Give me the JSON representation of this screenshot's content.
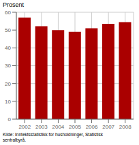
{
  "chart_data": {
    "type": "bar",
    "ylabel": "Prosent",
    "categories": [
      "2002",
      "2003",
      "2004",
      "2005",
      "2006",
      "2007",
      "2008"
    ],
    "values": [
      57.0,
      52.2,
      50.0,
      49.0,
      51.0,
      53.5,
      54.5
    ],
    "color": "#AA0000",
    "ylim": [
      0,
      60
    ],
    "yticks": [
      0,
      10,
      20,
      30,
      40,
      50,
      60
    ],
    "grid": true,
    "annotations": [
      "Kilde: Inntektsstatistikk for husholdninger, Statistisk\nsentralbyrå."
    ]
  }
}
